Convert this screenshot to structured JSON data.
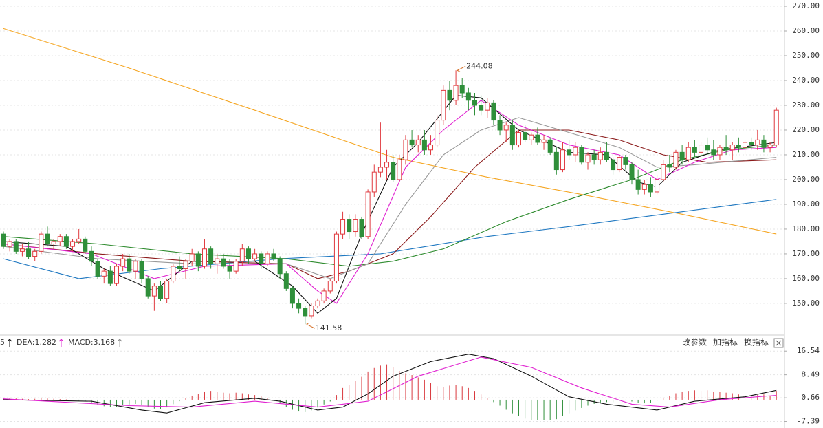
{
  "chart_data": [
    {
      "type": "candlestick",
      "up_color": "#e0393e",
      "down_color": "#2f8f3a",
      "grid": true,
      "ylim": [
        137.2,
        272.5
      ],
      "yticks": [
        {
          "value": 270,
          "label": "270.00"
        },
        {
          "value": 260,
          "label": "260.00"
        },
        {
          "value": 250,
          "label": "250.00"
        },
        {
          "value": 240,
          "label": "240.00"
        },
        {
          "value": 230,
          "label": "230.00"
        },
        {
          "value": 220,
          "label": "220.00"
        },
        {
          "value": 210,
          "label": "210.00"
        },
        {
          "value": 200,
          "label": "200.00"
        },
        {
          "value": 190,
          "label": "190.00"
        },
        {
          "value": 180,
          "label": "180.00"
        },
        {
          "value": 170,
          "label": "170.00"
        },
        {
          "value": 160,
          "label": "160.00"
        },
        {
          "value": 150,
          "label": "150.00"
        }
      ],
      "candles": [
        [
          178,
          179,
          172,
          173
        ],
        [
          173,
          176,
          171,
          175
        ],
        [
          175,
          176,
          170,
          171
        ],
        [
          171,
          174,
          169,
          172
        ],
        [
          172,
          175,
          168,
          169
        ],
        [
          169,
          172,
          167,
          171
        ],
        [
          171,
          179,
          170,
          178
        ],
        [
          178,
          181,
          173,
          174
        ],
        [
          174,
          176,
          172,
          175
        ],
        [
          175,
          178,
          173,
          177
        ],
        [
          177,
          178,
          172,
          173
        ],
        [
          173,
          176,
          171,
          175
        ],
        [
          175,
          180,
          174,
          176
        ],
        [
          176,
          177,
          170,
          171
        ],
        [
          171,
          173,
          165,
          167
        ],
        [
          167,
          168,
          160,
          161
        ],
        [
          161,
          164,
          158,
          163
        ],
        [
          163,
          165,
          157,
          158
        ],
        [
          158,
          166,
          157,
          165
        ],
        [
          165,
          170,
          163,
          168
        ],
        [
          168,
          170,
          162,
          163
        ],
        [
          163,
          168,
          160,
          167
        ],
        [
          167,
          168,
          158,
          160
        ],
        [
          160,
          161,
          152,
          153
        ],
        [
          153,
          158,
          147,
          157
        ],
        [
          157,
          159,
          151,
          152
        ],
        [
          152,
          160,
          150,
          159
        ],
        [
          159,
          166,
          158,
          165
        ],
        [
          165,
          169,
          163,
          164
        ],
        [
          164,
          168,
          160,
          167
        ],
        [
          167,
          172,
          165,
          170
        ],
        [
          170,
          171,
          163,
          165
        ],
        [
          165,
          176,
          164,
          172
        ],
        [
          172,
          173,
          164,
          166
        ],
        [
          166,
          170,
          162,
          168
        ],
        [
          168,
          170,
          164,
          165
        ],
        [
          165,
          168,
          160,
          163
        ],
        [
          163,
          168,
          162,
          167
        ],
        [
          167,
          174,
          165,
          172
        ],
        [
          172,
          173,
          166,
          168
        ],
        [
          168,
          172,
          167,
          170
        ],
        [
          170,
          171,
          164,
          166
        ],
        [
          166,
          171,
          165,
          170
        ],
        [
          170,
          172,
          167,
          168
        ],
        [
          168,
          169,
          160,
          162
        ],
        [
          162,
          163,
          155,
          156
        ],
        [
          156,
          157,
          148,
          150
        ],
        [
          150,
          152,
          146,
          148
        ],
        [
          148,
          149,
          141.58,
          145
        ],
        [
          145,
          150,
          144,
          149
        ],
        [
          149,
          152,
          148,
          151
        ],
        [
          151,
          156,
          150,
          155
        ],
        [
          155,
          160,
          154,
          159
        ],
        [
          159,
          179,
          158,
          178
        ],
        [
          178,
          187,
          176,
          184
        ],
        [
          184,
          186,
          176,
          179
        ],
        [
          179,
          186,
          177,
          184
        ],
        [
          184,
          185,
          176,
          177
        ],
        [
          177,
          196,
          176,
          195
        ],
        [
          195,
          206,
          193,
          203
        ],
        [
          203,
          223,
          201,
          205
        ],
        [
          205,
          212,
          200,
          207
        ],
        [
          207,
          210,
          199,
          200
        ],
        [
          200,
          210,
          199,
          208
        ],
        [
          208,
          218,
          206,
          216
        ],
        [
          216,
          220,
          213,
          214
        ],
        [
          214,
          218,
          211,
          216
        ],
        [
          216,
          220,
          210,
          212
        ],
        [
          212,
          218,
          210,
          214
        ],
        [
          214,
          226,
          213,
          224
        ],
        [
          224,
          238,
          222,
          236
        ],
        [
          236,
          240,
          228,
          232
        ],
        [
          232,
          244.08,
          230,
          238
        ],
        [
          238,
          241,
          233,
          235
        ],
        [
          235,
          237,
          228,
          232
        ],
        [
          232,
          235,
          226,
          230
        ],
        [
          230,
          234,
          226,
          228
        ],
        [
          228,
          233,
          225,
          231
        ],
        [
          231,
          232,
          222,
          224
        ],
        [
          224,
          226,
          218,
          220
        ],
        [
          220,
          223,
          215,
          222
        ],
        [
          222,
          224,
          212,
          214
        ],
        [
          214,
          220,
          213,
          219
        ],
        [
          219,
          222,
          215,
          216
        ],
        [
          216,
          219,
          214,
          218
        ],
        [
          218,
          221,
          214,
          215
        ],
        [
          215,
          218,
          212,
          216
        ],
        [
          216,
          217,
          210,
          211
        ],
        [
          211,
          213,
          202,
          204
        ],
        [
          204,
          215,
          203,
          212
        ],
        [
          212,
          216,
          208,
          210
        ],
        [
          210,
          215,
          207,
          213
        ],
        [
          213,
          214,
          206,
          207
        ],
        [
          207,
          211,
          204,
          210
        ],
        [
          210,
          212,
          206,
          208
        ],
        [
          208,
          213,
          206,
          211
        ],
        [
          211,
          215,
          207,
          208
        ],
        [
          208,
          209,
          202,
          204
        ],
        [
          204,
          210,
          203,
          209
        ],
        [
          209,
          210,
          204,
          206
        ],
        [
          206,
          207,
          198,
          200
        ],
        [
          200,
          204,
          194,
          196
        ],
        [
          196,
          200,
          194,
          198
        ],
        [
          198,
          201,
          193,
          195
        ],
        [
          195,
          202,
          194,
          200
        ],
        [
          200,
          208,
          199,
          206
        ],
        [
          206,
          210,
          203,
          205
        ],
        [
          205,
          212,
          204,
          211
        ],
        [
          211,
          214,
          206,
          208
        ],
        [
          208,
          215,
          207,
          213
        ],
        [
          213,
          216,
          209,
          211
        ],
        [
          211,
          215,
          208,
          214
        ],
        [
          214,
          217,
          210,
          212
        ],
        [
          212,
          216,
          208,
          210
        ],
        [
          210,
          214,
          208,
          213
        ],
        [
          213,
          218,
          210,
          212
        ],
        [
          212,
          215,
          208,
          214
        ],
        [
          214,
          217,
          211,
          213
        ],
        [
          213,
          216,
          210,
          215
        ],
        [
          215,
          217,
          212,
          214
        ],
        [
          214,
          220,
          212,
          216
        ],
        [
          216,
          218,
          211,
          213
        ],
        [
          213,
          215,
          211,
          214
        ],
        [
          214,
          229,
          213,
          228
        ]
      ],
      "series": [
        {
          "color": "#f5a623",
          "x": [
            0,
            20,
            40,
            62,
            77,
            92,
            108,
            123
          ],
          "values": [
            261,
            245,
            228,
            209,
            201,
            194,
            186,
            178
          ]
        },
        {
          "color": "#1f78c1",
          "x": [
            0,
            12,
            25,
            44,
            60,
            77,
            90,
            105,
            123
          ],
          "values": [
            168,
            160,
            164,
            168,
            170,
            177,
            181,
            186,
            192
          ]
        },
        {
          "color": "#2e8b2e",
          "x": [
            0,
            15,
            30,
            45,
            55,
            62,
            70,
            80,
            90,
            100,
            108,
            115,
            123
          ],
          "values": [
            177,
            174,
            170,
            168,
            165,
            167,
            172,
            183,
            192,
            200,
            208,
            212,
            214
          ]
        },
        {
          "color": "#8b1a1a",
          "x": [
            0,
            15,
            30,
            45,
            50,
            55,
            62,
            68,
            75,
            82,
            90,
            98,
            105,
            112,
            123
          ],
          "values": [
            174,
            170,
            167,
            166,
            160,
            163,
            170,
            185,
            205,
            220,
            220,
            216,
            210,
            207,
            208
          ]
        },
        {
          "color": "#999999",
          "x": [
            0,
            15,
            30,
            45,
            52,
            58,
            64,
            70,
            76,
            82,
            90,
            98,
            104,
            110,
            123
          ],
          "values": [
            173,
            168,
            166,
            166,
            160,
            166,
            190,
            210,
            220,
            225,
            219,
            213,
            205,
            206,
            209
          ]
        },
        {
          "color": "#e020d0",
          "x": [
            0,
            14,
            24,
            32,
            45,
            50,
            53,
            58,
            64,
            70,
            76,
            82,
            90,
            98,
            104,
            110,
            116,
            123
          ],
          "values": [
            174,
            170,
            160,
            165,
            166,
            155,
            150,
            170,
            205,
            220,
            232,
            222,
            214,
            210,
            200,
            207,
            212,
            213
          ]
        },
        {
          "color": "#111111",
          "x": [
            0,
            10,
            16,
            24,
            30,
            40,
            46,
            50,
            53,
            57,
            62,
            66,
            72,
            76,
            82,
            90,
            96,
            101,
            104,
            108,
            114,
            123
          ],
          "values": [
            175,
            173,
            164,
            155,
            167,
            167,
            157,
            146,
            152,
            178,
            205,
            215,
            234,
            233,
            220,
            211,
            210,
            199,
            197,
            207,
            212,
            215
          ]
        }
      ],
      "annotations": [
        {
          "label": "244.08",
          "value": 244.08,
          "x": 72,
          "side": "high"
        },
        {
          "label": "141.58",
          "value": 141.58,
          "x": 48,
          "side": "low"
        }
      ]
    },
    {
      "type": "macd",
      "labels": [
        "5",
        "DEA:1.282",
        "MACD:3.168"
      ],
      "label_colors": [
        "#111111",
        "#e020d0",
        "#888888"
      ],
      "toolbar": [
        "改参数",
        "加指标",
        "换指标"
      ],
      "ylim": [
        -9.6,
        20.8
      ],
      "yticks": [
        16.54,
        8.49,
        0.66,
        -7.39
      ],
      "grid": true,
      "up_color": "#d9393e",
      "down_color": "#2f8f3a",
      "histogram": [
        0.5,
        0.6,
        0.4,
        0.3,
        0.2,
        0.3,
        0.5,
        0.4,
        0.3,
        0.2,
        0.1,
        0,
        -0.3,
        -0.6,
        -1.2,
        -1.8,
        -2.2,
        -2.5,
        -2.4,
        -2.0,
        -1.6,
        -1.4,
        -1.8,
        -2.4,
        -3.0,
        -3.2,
        -2.6,
        -1.5,
        -0.5,
        0.5,
        1.4,
        2.0,
        2.8,
        3.0,
        2.6,
        2.4,
        2.2,
        2.4,
        2.2,
        1.8,
        1.6,
        1.2,
        0.6,
        0,
        -1.2,
        -2.4,
        -3.4,
        -4.0,
        -4.2,
        -3.6,
        -2.6,
        -1.6,
        -0.6,
        1.6,
        4.0,
        5.0,
        6.4,
        7.8,
        9.6,
        10.8,
        11.6,
        12.0,
        11.0,
        9.8,
        9.0,
        8.4,
        7.6,
        6.8,
        5.6,
        4.6,
        4.4,
        4.8,
        5.0,
        4.6,
        4.0,
        3.0,
        1.8,
        0.6,
        -0.8,
        -2.0,
        -3.4,
        -4.6,
        -5.6,
        -6.4,
        -6.8,
        -7.0,
        -7.0,
        -6.8,
        -6.6,
        -5.6,
        -4.6,
        -3.6,
        -2.8,
        -2.0,
        -1.4,
        -1.0,
        -0.8,
        -0.8,
        -0.4,
        -0.2,
        -0.6,
        -1.0,
        -1.2,
        -1.0,
        -0.4,
        0.6,
        1.4,
        2.2,
        2.8,
        3.0,
        3.2,
        3.0,
        3.2,
        2.8,
        2.6,
        2.4,
        2.2,
        1.8,
        1.6,
        1.4,
        1.6,
        1.8,
        1.2,
        3.0
      ],
      "series": [
        {
          "color": "#111111",
          "x": [
            0,
            14,
            22,
            26,
            32,
            40,
            44,
            50,
            54,
            58,
            62,
            68,
            74,
            78,
            84,
            90,
            96,
            104,
            110,
            118,
            123
          ],
          "values": [
            0,
            -0.5,
            -3.5,
            -4.5,
            -1,
            0.5,
            -0.5,
            -3.5,
            -2.5,
            2,
            8,
            13,
            15.5,
            14,
            8,
            1,
            -1.5,
            -3.5,
            -0.5,
            1,
            3.2
          ]
        },
        {
          "color": "#e020d0",
          "x": [
            0,
            20,
            30,
            40,
            50,
            58,
            66,
            76,
            84,
            92,
            100,
            106,
            114,
            123
          ],
          "values": [
            0.3,
            -2,
            -2.5,
            -0.5,
            -2.5,
            -0.5,
            8,
            14.5,
            11,
            4,
            -1.5,
            -2.5,
            0,
            1.5
          ]
        }
      ]
    }
  ]
}
